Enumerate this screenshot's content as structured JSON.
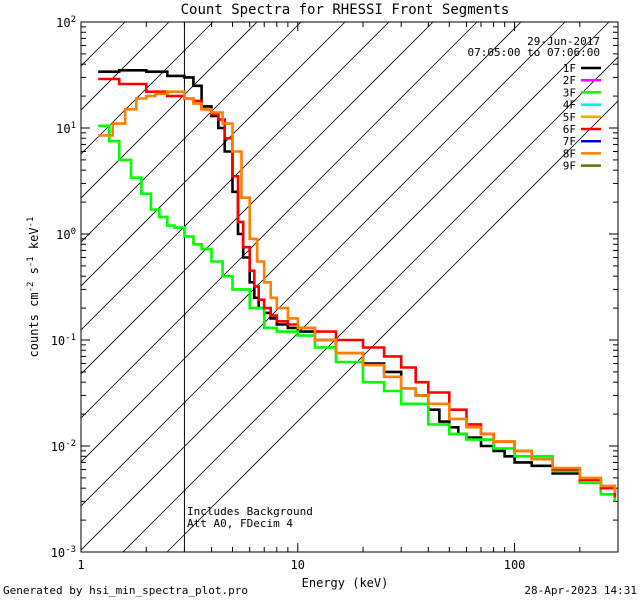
{
  "chart_data": {
    "type": "line",
    "title": "Count Spectra for RHESSI Front Segments",
    "xlabel": "Energy (keV)",
    "ylabel_parts": [
      "counts cm",
      "-2",
      " s",
      "-1",
      " keV",
      "-1"
    ],
    "x_scale": "log",
    "y_scale": "log",
    "xlim": [
      1,
      300
    ],
    "ylim": [
      0.001,
      100
    ],
    "x_ticks": [
      {
        "value": 1,
        "label": "1"
      },
      {
        "value": 10,
        "label": "10"
      },
      {
        "value": 100,
        "label": "100"
      }
    ],
    "y_ticks": [
      {
        "value": 100,
        "base": "10",
        "exp": "2"
      },
      {
        "value": 10,
        "base": "10",
        "exp": "1"
      },
      {
        "value": 1,
        "base": "10",
        "exp": "0"
      },
      {
        "value": 0.1,
        "base": "10",
        "exp": "-1"
      },
      {
        "value": 0.01,
        "base": "10",
        "exp": "-2"
      },
      {
        "value": 0.001,
        "base": "10",
        "exp": "-3"
      }
    ],
    "date": "29-Jun-2017",
    "time_range": "07:05:00 to 07:06:00",
    "threshold_keV": 3,
    "shaded_region": [
      1,
      3
    ],
    "annotations": [
      "Includes Background",
      "Att A0, FDecim 4"
    ],
    "legend": [
      {
        "name": "1F",
        "color": "#000000"
      },
      {
        "name": "2F",
        "color": "#ff00ff"
      },
      {
        "name": "3F",
        "color": "#00ff00"
      },
      {
        "name": "4F",
        "color": "#00e5ff"
      },
      {
        "name": "5F",
        "color": "#ffa500"
      },
      {
        "name": "6F",
        "color": "#ff0000"
      },
      {
        "name": "7F",
        "color": "#0000cc"
      },
      {
        "name": "8F",
        "color": "#ff7f00"
      },
      {
        "name": "9F",
        "color": "#6b6b00"
      }
    ],
    "series": [
      {
        "name": "1F",
        "color": "#000000",
        "x": [
          1.2,
          1.5,
          2.0,
          2.5,
          3.0,
          3.3,
          3.6,
          4.0,
          4.3,
          4.6,
          5.0,
          5.3,
          5.6,
          6.0,
          6.3,
          6.6,
          7.0,
          7.5,
          8.0,
          9.0,
          10,
          12,
          15,
          20,
          25,
          30,
          35,
          40,
          45,
          50,
          55,
          60,
          70,
          80,
          90,
          100,
          120,
          150,
          200,
          250,
          290
        ],
        "values": [
          34,
          35,
          34,
          31,
          30,
          25,
          16,
          13,
          10,
          6,
          2.5,
          1.0,
          0.6,
          0.35,
          0.25,
          0.2,
          0.18,
          0.16,
          0.14,
          0.13,
          0.12,
          0.1,
          0.075,
          0.06,
          0.05,
          0.035,
          0.03,
          0.022,
          0.017,
          0.015,
          0.013,
          0.012,
          0.01,
          0.009,
          0.008,
          0.007,
          0.0065,
          0.0055,
          0.0048,
          0.004,
          0.0035
        ]
      },
      {
        "name": "3F",
        "color": "#00ff00",
        "x": [
          1.2,
          1.35,
          1.5,
          1.7,
          1.9,
          2.1,
          2.3,
          2.5,
          2.7,
          3.0,
          3.3,
          3.6,
          4.0,
          4.5,
          5.0,
          6.0,
          7.0,
          8.0,
          10,
          12,
          15,
          20,
          25,
          30,
          40,
          50,
          60,
          80,
          100,
          150,
          200,
          250,
          290
        ],
        "values": [
          10.5,
          7.5,
          5.0,
          3.4,
          2.4,
          1.7,
          1.45,
          1.2,
          1.15,
          0.95,
          0.8,
          0.72,
          0.55,
          0.4,
          0.3,
          0.2,
          0.13,
          0.12,
          0.11,
          0.085,
          0.062,
          0.04,
          0.033,
          0.025,
          0.016,
          0.013,
          0.0115,
          0.0095,
          0.008,
          0.0058,
          0.0045,
          0.0035,
          0.003
        ]
      },
      {
        "name": "6F",
        "color": "#ff0000",
        "x": [
          1.2,
          1.5,
          2.0,
          2.5,
          3.0,
          3.3,
          3.6,
          4.0,
          4.3,
          4.6,
          5.0,
          5.3,
          5.6,
          6.0,
          6.3,
          6.6,
          7.0,
          7.5,
          8.0,
          9.0,
          10,
          12,
          15,
          20,
          25,
          30,
          35,
          40,
          50,
          60,
          70,
          80,
          100,
          120,
          150,
          200,
          250,
          290
        ],
        "values": [
          29,
          26,
          22,
          20,
          19,
          18,
          15,
          13.5,
          12,
          8,
          3.5,
          1.3,
          0.75,
          0.45,
          0.32,
          0.24,
          0.2,
          0.17,
          0.15,
          0.14,
          0.13,
          0.12,
          0.1,
          0.085,
          0.07,
          0.055,
          0.04,
          0.032,
          0.022,
          0.016,
          0.013,
          0.011,
          0.009,
          0.0075,
          0.006,
          0.0048,
          0.004,
          0.0033
        ]
      },
      {
        "name": "8F",
        "color": "#ff7f00",
        "x": [
          1.2,
          1.4,
          1.6,
          1.8,
          2.0,
          2.2,
          2.5,
          2.8,
          3.0,
          3.3,
          3.6,
          4.0,
          4.5,
          5.0,
          5.5,
          6.0,
          6.5,
          7.0,
          7.5,
          8.0,
          9.0,
          10,
          12,
          15,
          20,
          25,
          30,
          35,
          40,
          50,
          60,
          70,
          80,
          100,
          120,
          150,
          200,
          250,
          290
        ],
        "values": [
          8.5,
          11,
          15,
          19,
          20,
          21,
          22,
          22,
          19,
          17,
          15,
          14,
          11,
          6,
          2.2,
          0.9,
          0.55,
          0.35,
          0.25,
          0.2,
          0.16,
          0.13,
          0.1,
          0.075,
          0.058,
          0.045,
          0.035,
          0.03,
          0.025,
          0.018,
          0.015,
          0.013,
          0.011,
          0.009,
          0.0075,
          0.0062,
          0.005,
          0.0042,
          0.0036
        ]
      }
    ]
  },
  "footer": {
    "generator": "Generated by hsi_min_spectra_plot.pro",
    "timestamp": "28-Apr-2023 14:31"
  }
}
